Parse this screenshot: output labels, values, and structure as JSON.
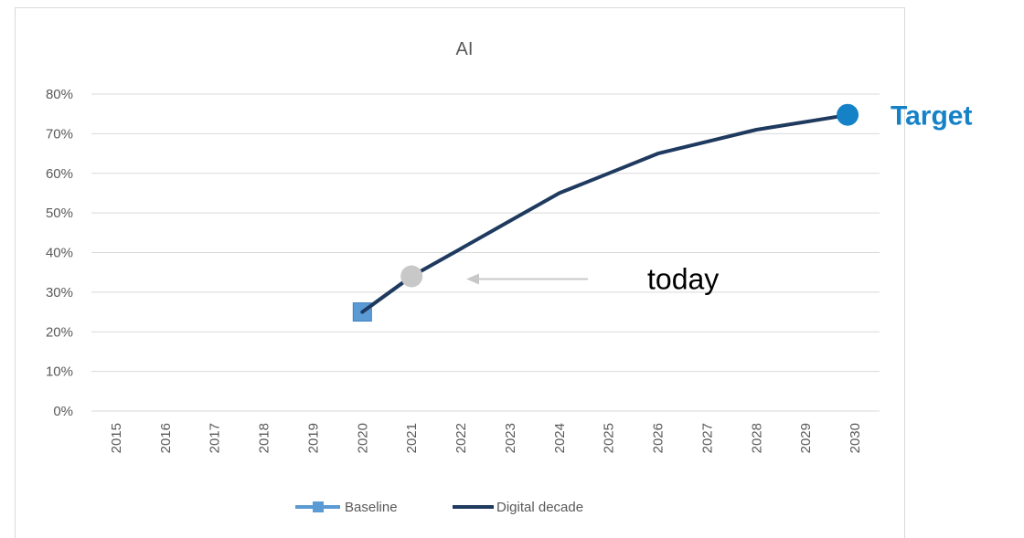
{
  "chart_data": {
    "type": "line",
    "title": "AI",
    "xlabel": "",
    "ylabel": "",
    "x": [
      "2015",
      "2016",
      "2017",
      "2018",
      "2019",
      "2020",
      "2021",
      "2022",
      "2023",
      "2024",
      "2025",
      "2026",
      "2027",
      "2028",
      "2029",
      "2030"
    ],
    "ylim": [
      0,
      80
    ],
    "yticks": [
      "0%",
      "10%",
      "20%",
      "30%",
      "40%",
      "50%",
      "60%",
      "70%",
      "80%"
    ],
    "grid": true,
    "legend_position": "bottom",
    "series": [
      {
        "name": "Baseline",
        "color": "#5b9bd5",
        "marker": "square",
        "points": [
          {
            "x": "2020",
            "y": 25
          }
        ]
      },
      {
        "name": "Digital decade",
        "color": "#1f3a5f",
        "points": [
          {
            "x": "2020",
            "y": 25
          },
          {
            "x": "2021",
            "y": 34
          },
          {
            "x": "2022",
            "y": 41
          },
          {
            "x": "2023",
            "y": 48
          },
          {
            "x": "2024",
            "y": 55
          },
          {
            "x": "2025",
            "y": 60
          },
          {
            "x": "2026",
            "y": 65
          },
          {
            "x": "2027",
            "y": 68
          },
          {
            "x": "2028",
            "y": 71
          },
          {
            "x": "2029",
            "y": 73
          },
          {
            "x": "2030",
            "y": 75
          }
        ]
      }
    ],
    "annotations": {
      "today": {
        "label": "today",
        "x": "2021",
        "y": 34,
        "color": "#c8c8c8"
      },
      "target": {
        "label": "Target",
        "x": "2030",
        "y": 75,
        "color": "#1582c8"
      }
    }
  }
}
